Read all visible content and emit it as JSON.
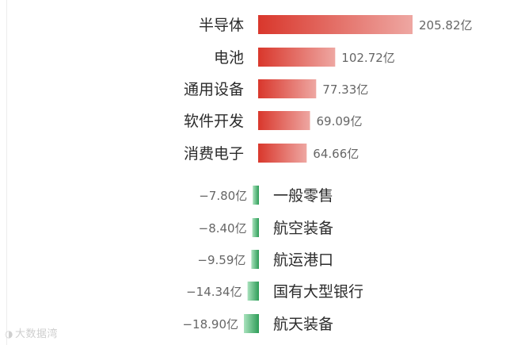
{
  "chart_data": {
    "type": "bar",
    "orientation": "horizontal",
    "unit": "亿",
    "categories": [
      "半导体",
      "电池",
      "通用设备",
      "软件开发",
      "消费电子",
      "一般零售",
      "航空装备",
      "航运港口",
      "国有大型银行",
      "航天装备"
    ],
    "values": [
      205.82,
      102.72,
      77.33,
      69.09,
      64.66,
      -7.8,
      -8.4,
      -9.59,
      -14.34,
      -18.9
    ],
    "value_labels": [
      "205.82亿",
      "102.72亿",
      "77.33亿",
      "69.09亿",
      "64.66亿",
      "−7.80亿",
      "−8.40亿",
      "−9.59亿",
      "−14.34亿",
      "−18.90亿"
    ],
    "colors": {
      "positive_start": "#d9372c",
      "positive_end": "#eea7a2",
      "negative_start": "#a9e2bd",
      "negative_end": "#2e9d58"
    },
    "grid": false,
    "legend": "none"
  },
  "watermark": {
    "icon": "logo-icon",
    "text": "大数据湾"
  }
}
